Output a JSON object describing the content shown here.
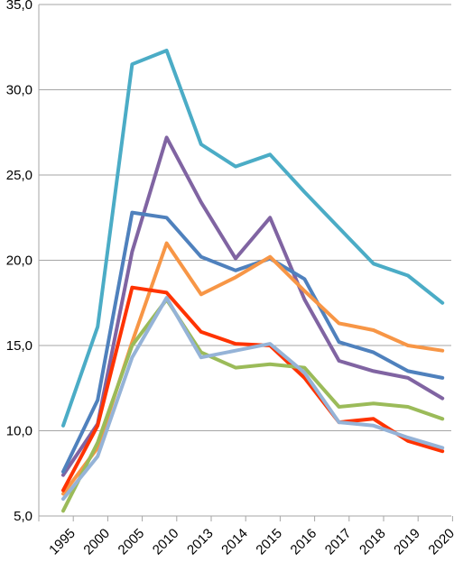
{
  "chart_data": {
    "type": "line",
    "title": "",
    "xlabel": "",
    "ylabel": "",
    "categories": [
      "1995",
      "2000",
      "2005",
      "2010",
      "2013",
      "2014",
      "2015",
      "2016",
      "2017",
      "2018",
      "2019",
      "2020"
    ],
    "y_ticks": [
      "5,0",
      "10,0",
      "15,0",
      "20,0",
      "25,0",
      "30,0",
      "35,0"
    ],
    "ylim": [
      5,
      35
    ],
    "grid": true,
    "legend": "none",
    "series": [
      {
        "color": "#4bacc6",
        "values": [
          10.3,
          16.1,
          31.5,
          32.3,
          26.8,
          25.5,
          26.2,
          24.0,
          21.9,
          19.8,
          19.1,
          17.5
        ]
      },
      {
        "color": "#8064a2",
        "values": [
          7.4,
          10.4,
          20.5,
          27.2,
          23.4,
          20.1,
          22.5,
          17.7,
          14.1,
          13.5,
          13.1,
          11.9
        ]
      },
      {
        "color": "#4f81bd",
        "values": [
          7.6,
          11.8,
          22.8,
          22.5,
          20.2,
          19.4,
          20.1,
          18.9,
          15.2,
          14.6,
          13.5,
          13.1
        ]
      },
      {
        "color": "#f79646",
        "values": [
          6.3,
          9.0,
          15.2,
          21.0,
          18.0,
          19.0,
          20.2,
          18.2,
          16.3,
          15.9,
          15.0,
          14.7
        ]
      },
      {
        "color": "#ff3300",
        "values": [
          6.5,
          10.3,
          18.4,
          18.1,
          15.8,
          15.1,
          15.0,
          13.1,
          10.5,
          10.7,
          9.4,
          8.8
        ]
      },
      {
        "color": "#9bbb59",
        "values": [
          5.3,
          9.3,
          15.0,
          17.7,
          14.6,
          13.7,
          13.9,
          13.7,
          11.4,
          11.6,
          11.4,
          10.7
        ]
      },
      {
        "color": "#95b3d7",
        "values": [
          6.0,
          8.5,
          14.3,
          17.8,
          14.3,
          14.7,
          15.1,
          13.4,
          10.5,
          10.3,
          9.6,
          9.0
        ]
      }
    ]
  }
}
